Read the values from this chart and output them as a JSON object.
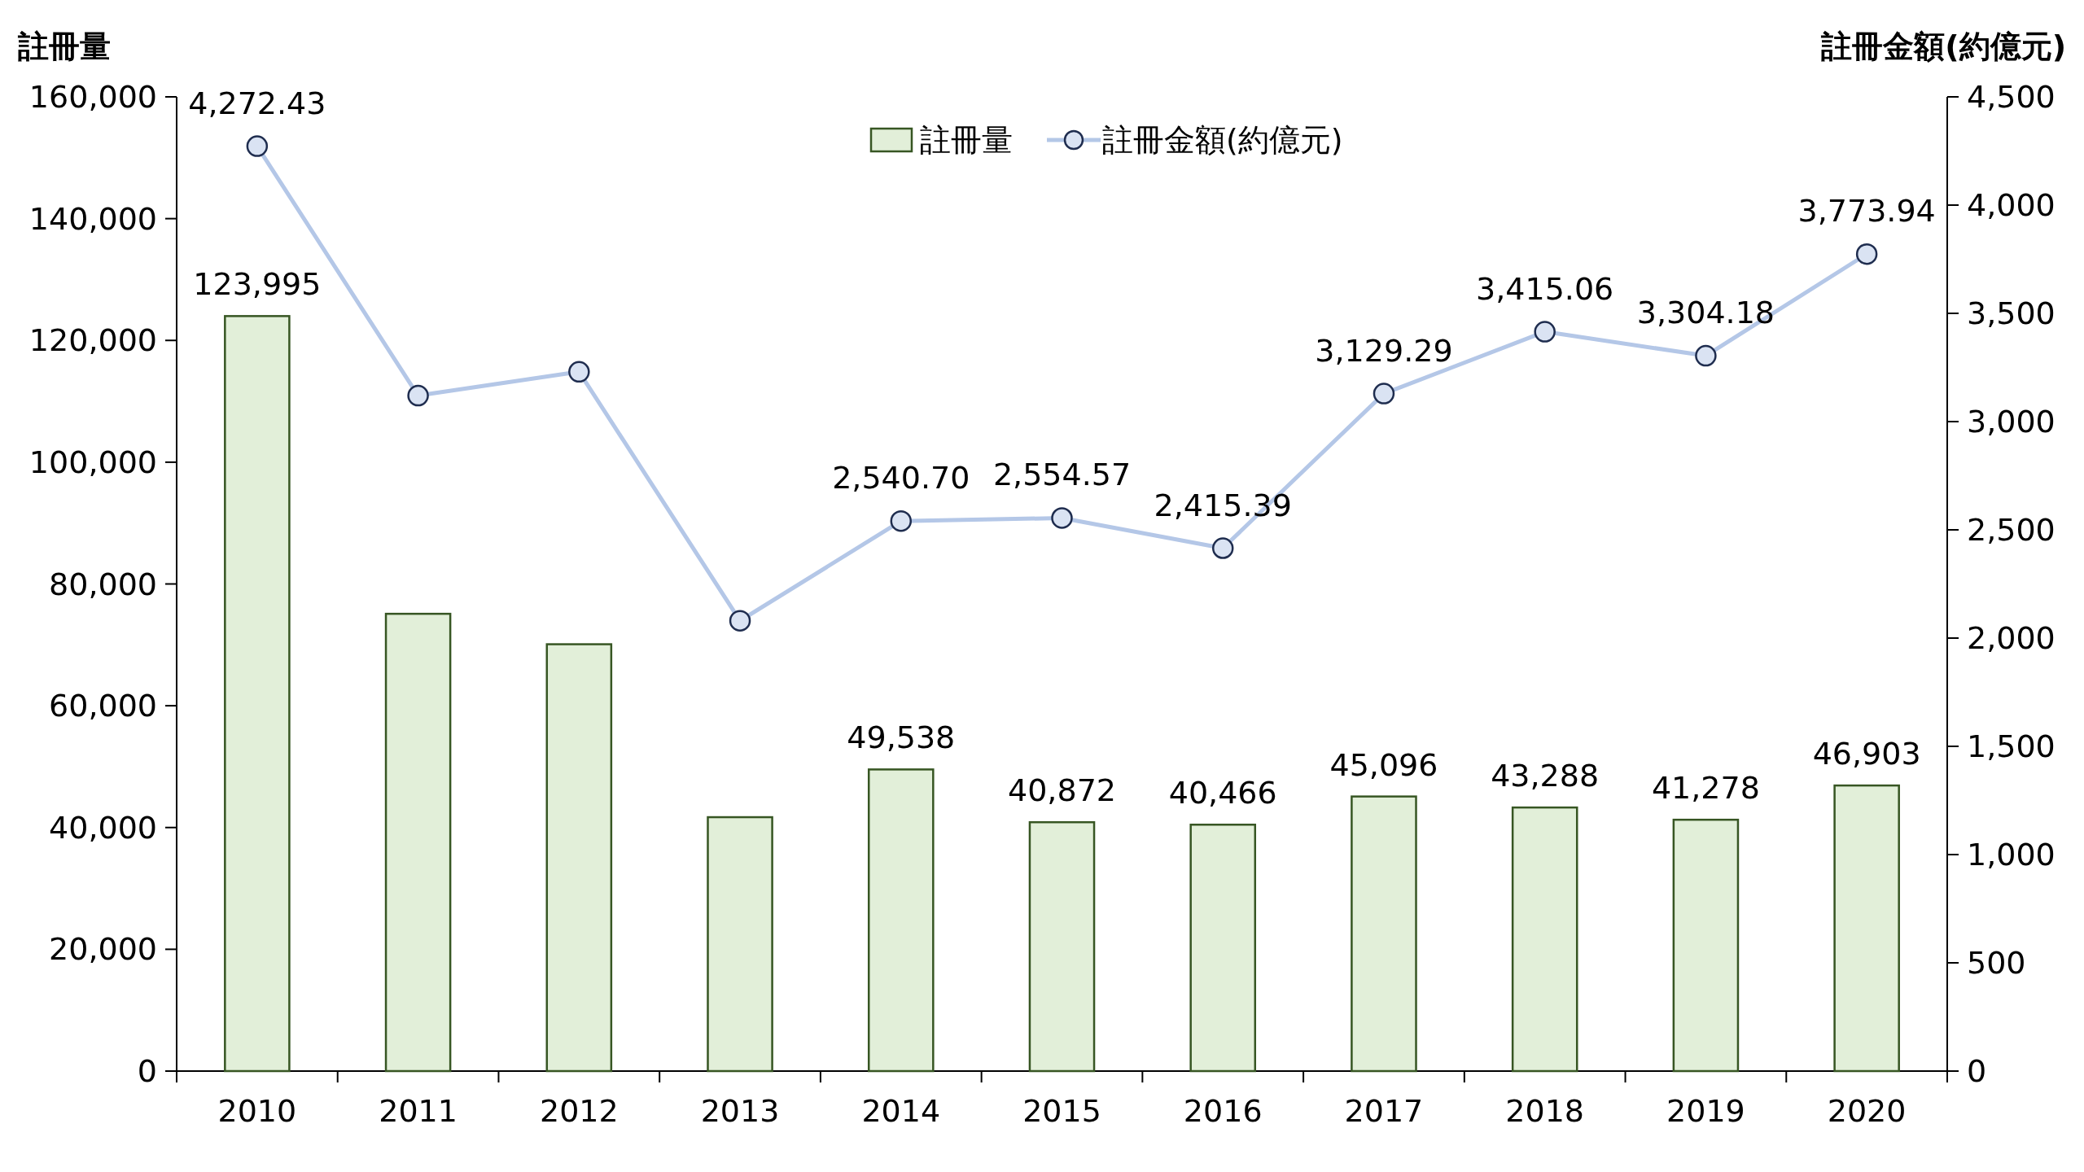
{
  "chart_data": {
    "type": "bar",
    "ylabel": "註冊量",
    "y2label": "註冊金額(約億元)",
    "categories": [
      "2010",
      "2011",
      "2012",
      "2013",
      "2014",
      "2015",
      "2016",
      "2017",
      "2018",
      "2019",
      "2020"
    ],
    "ylim": [
      0,
      160000
    ],
    "yticks": [
      0,
      {
        "value": 20000,
        "label": "20,000"
      },
      {
        "value": 40000,
        "label": "40,000"
      },
      {
        "value": 60000,
        "label": "60,000"
      },
      {
        "value": 80000,
        "label": "80,000"
      },
      {
        "value": 100000,
        "label": "100,000"
      },
      {
        "value": 120000,
        "label": "120,000"
      },
      {
        "value": 140000,
        "label": "140,000"
      },
      {
        "value": 160000,
        "label": "160,000"
      }
    ],
    "y2lim": [
      0,
      4500
    ],
    "y2ticks": [
      0,
      500,
      {
        "value": 1000,
        "label": "1,000"
      },
      {
        "value": 1500,
        "label": "1,500"
      },
      {
        "value": 2000,
        "label": "2,000"
      },
      {
        "value": 2500,
        "label": "2,500"
      },
      {
        "value": 3000,
        "label": "3,000"
      },
      {
        "value": 3500,
        "label": "3,500"
      },
      {
        "value": 4000,
        "label": "4,000"
      },
      {
        "value": 4500,
        "label": "4,500"
      }
    ],
    "series": [
      {
        "name": "註冊量",
        "color": "#e2efd9",
        "values": [
          123995,
          75100,
          70100,
          41700,
          49538,
          40872,
          40466,
          45096,
          43288,
          41278,
          46903
        ],
        "value_labels": [
          "123,995",
          null,
          null,
          null,
          "49,538",
          "40,872",
          "40,466",
          "45,096",
          "43,288",
          "41,278",
          "46,903"
        ]
      },
      {
        "name": "註冊金額(約億元)",
        "type": "line",
        "axis": "y2",
        "color": "#b4c7e7",
        "marker": "circle",
        "values": [
          4272.43,
          3120,
          3230,
          2080,
          2540.7,
          2554.57,
          2415.39,
          3129.29,
          3415.06,
          3304.18,
          3773.94
        ],
        "value_labels": [
          "4,272.43",
          null,
          null,
          null,
          "2,540.70",
          "2,554.57",
          "2,415.39",
          "3,129.29",
          "3,415.06",
          "3,304.18",
          "3,773.94"
        ]
      }
    ],
    "legend": "top",
    "grid": false
  }
}
